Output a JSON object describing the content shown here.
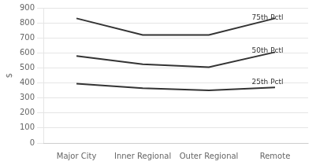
{
  "chart_data": {
    "type": "line",
    "categories": [
      "Major City",
      "Inner Regional",
      "Outer Regional",
      "Remote"
    ],
    "series": [
      {
        "name": "75th Pctl",
        "color": "#333333",
        "values": [
          830,
          720,
          720,
          830
        ]
      },
      {
        "name": "50th Pctl",
        "color": "#333333",
        "values": [
          580,
          525,
          505,
          605
        ]
      },
      {
        "name": "25th Pctl",
        "color": "#333333",
        "values": [
          395,
          365,
          350,
          370
        ]
      }
    ],
    "ylabel": "$",
    "ylim": [
      0,
      900
    ],
    "yticks": [
      0,
      100,
      200,
      300,
      400,
      500,
      600,
      700,
      800,
      900
    ],
    "grid": true
  }
}
